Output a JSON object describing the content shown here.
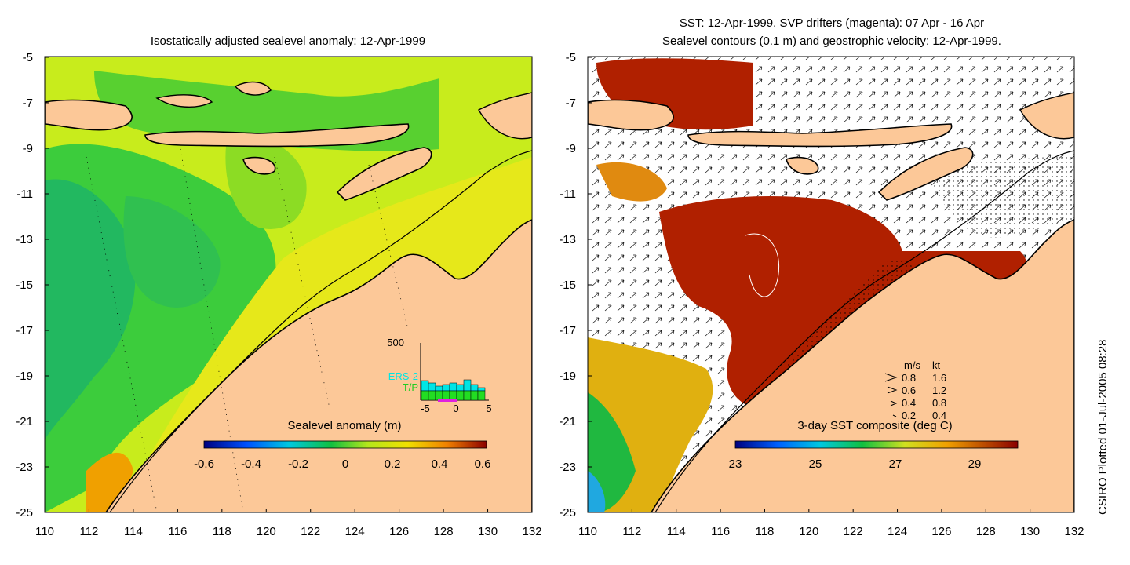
{
  "left_panel": {
    "title": "Isostatically adjusted sealevel anomaly: 12-Apr-1999",
    "colorbar_label": "Sealevel anomaly (m)",
    "colorbar_ticks": [
      "-0.6",
      "-0.4",
      "-0.2",
      "0",
      "0.2",
      "0.4",
      "0.6"
    ],
    "inset": {
      "ymax_label": "500",
      "sat1": "ERS-2",
      "sat2": "T/P",
      "x_ticks": [
        "-5",
        "0",
        "5"
      ],
      "sat1_color": "#00e5e5",
      "sat2_color": "#22dd22"
    }
  },
  "right_panel": {
    "title_line1": "SST: 12-Apr-1999. SVP drifters (magenta): 07 Apr - 16 Apr",
    "title_line2": "Sealevel contours (0.1 m) and geostrophic velocity: 12-Apr-1999.",
    "colorbar_label": "3-day SST composite (deg C)",
    "colorbar_ticks": [
      "23",
      "25",
      "27",
      "29"
    ],
    "legend": {
      "header_ms": "m/s",
      "header_kt": "kt",
      "rows": [
        {
          "ms": "0.8",
          "kt": "1.6"
        },
        {
          "ms": "0.6",
          "kt": "1.2"
        },
        {
          "ms": "0.4",
          "kt": "0.8"
        },
        {
          "ms": "0.2",
          "kt": "0.4"
        }
      ]
    }
  },
  "axes": {
    "y_ticks": [
      "-5",
      "-7",
      "-9",
      "-11",
      "-13",
      "-15",
      "-17",
      "-19",
      "-21",
      "-23",
      "-25"
    ],
    "x_ticks": [
      "110",
      "112",
      "114",
      "116",
      "118",
      "120",
      "122",
      "124",
      "126",
      "128",
      "130",
      "132"
    ]
  },
  "credit": "CSIRO Plotted 01-Jul-2005 08:28",
  "colors": {
    "land": "#fcc898",
    "sea_base": "#c8ec1c",
    "sst_warm": "#b02000"
  }
}
